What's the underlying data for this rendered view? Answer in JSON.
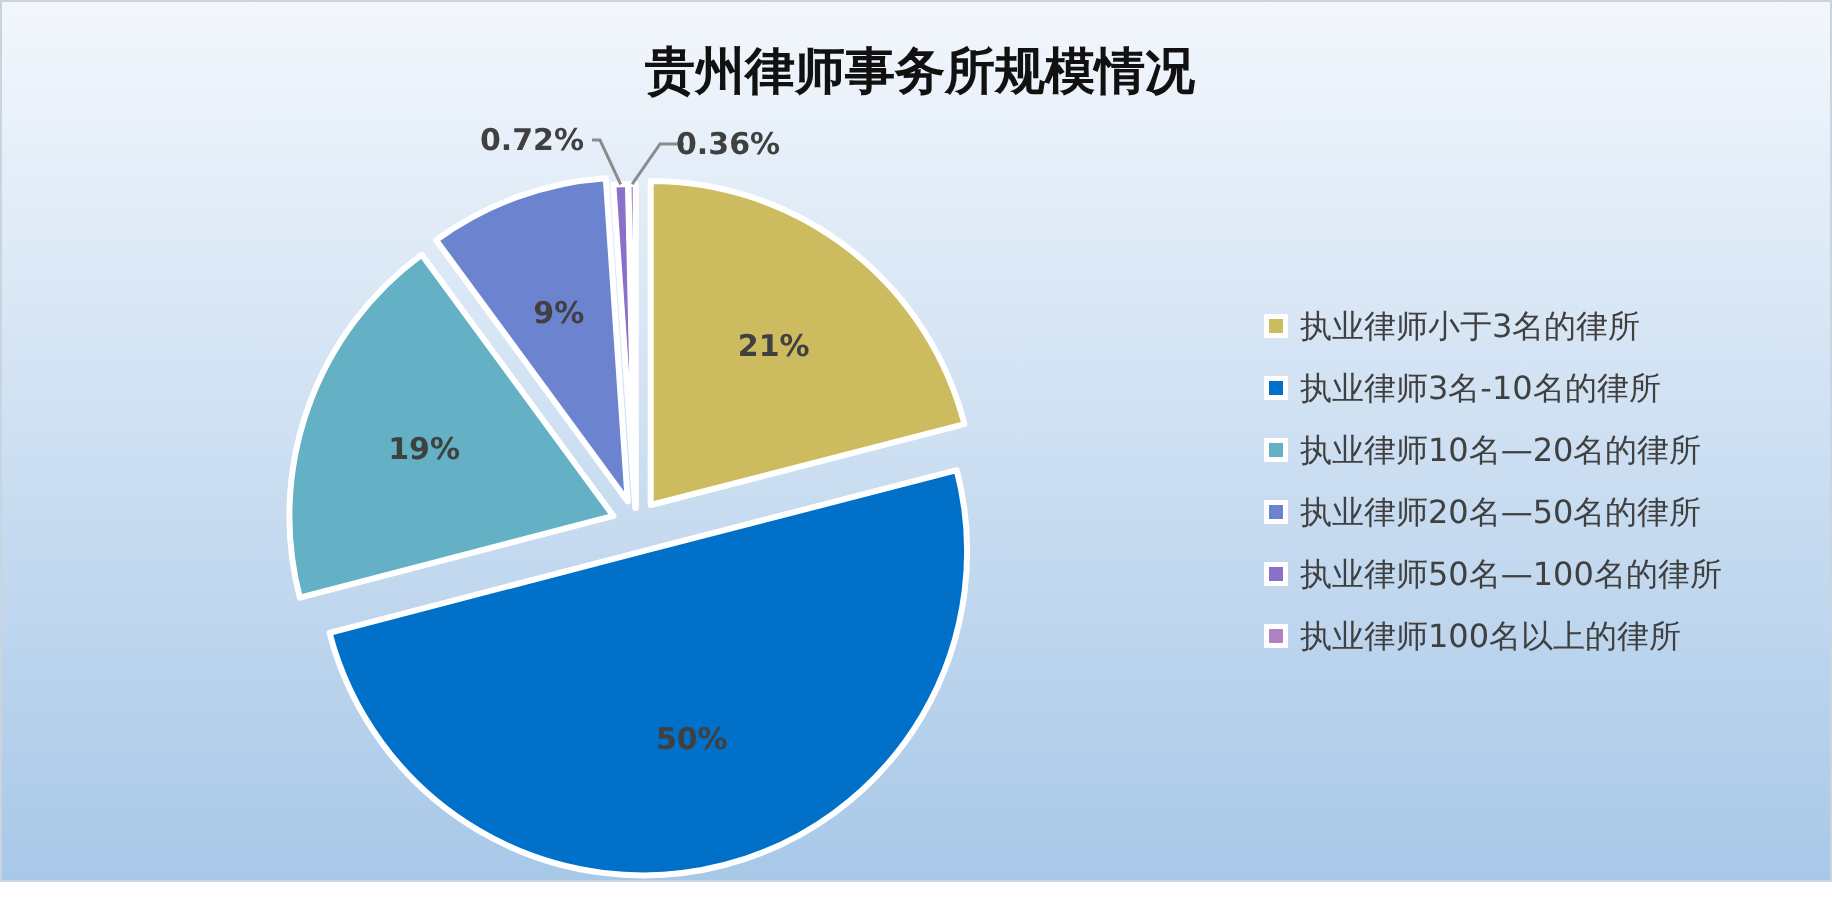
{
  "chart_data": {
    "type": "pie",
    "title": "贵州律师事务所规模情况",
    "categories": [
      "执业律师小于3名的律所",
      "执业律师3名-10名的律所",
      "执业律师10名—20名的律所",
      "执业律师20名—50名的律所",
      "执业律师50名—100名的律所",
      "执业律师100名以上的律所"
    ],
    "values": [
      21,
      50,
      19,
      9,
      0.72,
      0.36
    ],
    "colors": [
      "#cdbb5f",
      "#0070c8",
      "#64b0c4",
      "#6c83cf",
      "#8a70c8",
      "#b080c0"
    ],
    "value_labels": [
      "21%",
      "50%",
      "19%",
      "9%",
      "0.72%",
      "0.36%"
    ],
    "legend": "right"
  }
}
